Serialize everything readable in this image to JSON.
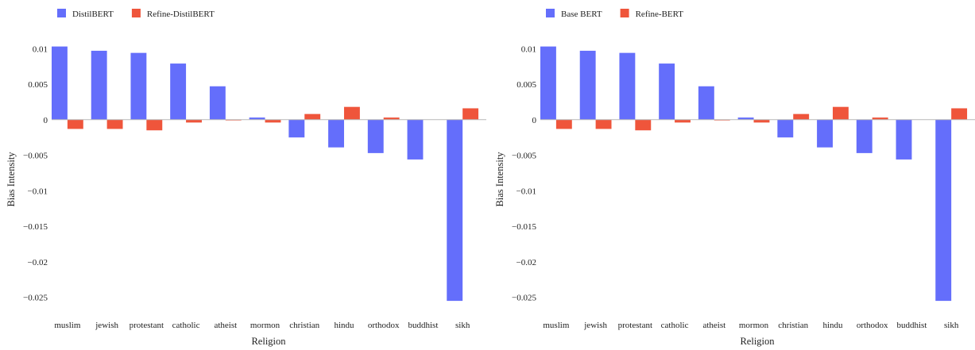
{
  "colors": {
    "series_a": "#646EFB",
    "series_b": "#EF553B"
  },
  "chart_data": [
    {
      "type": "bar",
      "categories": [
        "muslim",
        "jewish",
        "protestant",
        "catholic",
        "atheist",
        "mormon",
        "christian",
        "hindu",
        "orthodox",
        "buddhist",
        "sikh"
      ],
      "series": [
        {
          "name": "DistilBERT",
          "values": [
            0.0103,
            0.0097,
            0.0094,
            0.0079,
            0.0047,
            0.0003,
            -0.0025,
            -0.0039,
            -0.0047,
            -0.0056,
            -0.0255
          ]
        },
        {
          "name": "Refine-DistilBERT",
          "values": [
            -0.0013,
            -0.0013,
            -0.0015,
            -0.0004,
            -0.0001,
            -0.0004,
            0.0008,
            0.0018,
            0.0003,
            0,
            0.0016
          ]
        }
      ],
      "xlabel": "Religion",
      "ylabel": "Bias Intensity",
      "ylim": [
        -0.0275,
        0.0107
      ],
      "yticks": [
        0.01,
        0.005,
        0,
        -0.005,
        -0.01,
        -0.015,
        -0.02,
        -0.025
      ],
      "ytick_labels": [
        "0.01",
        "0.005",
        "0",
        "−0.005",
        "−0.01",
        "−0.015",
        "−0.02",
        "−0.025"
      ],
      "legend_position": "top-left",
      "grid": false
    },
    {
      "type": "bar",
      "categories": [
        "muslim",
        "jewish",
        "protestant",
        "catholic",
        "atheist",
        "mormon",
        "christian",
        "hindu",
        "orthodox",
        "buddhist",
        "sikh"
      ],
      "series": [
        {
          "name": "Base BERT",
          "values": [
            0.0103,
            0.0097,
            0.0094,
            0.0079,
            0.0047,
            0.0003,
            -0.0025,
            -0.0039,
            -0.0047,
            -0.0056,
            -0.0255
          ]
        },
        {
          "name": "Refine-BERT",
          "values": [
            -0.0013,
            -0.0013,
            -0.0015,
            -0.0004,
            -0.0001,
            -0.0004,
            0.0008,
            0.0018,
            0.0003,
            0,
            0.0016
          ]
        }
      ],
      "xlabel": "Religion",
      "ylabel": "Bias Intensity",
      "ylim": [
        -0.0275,
        0.0107
      ],
      "yticks": [
        0.01,
        0.005,
        0,
        -0.005,
        -0.01,
        -0.015,
        -0.02,
        -0.025
      ],
      "ytick_labels": [
        "0.01",
        "0.005",
        "0",
        "−0.005",
        "−0.01",
        "−0.015",
        "−0.02",
        "−0.025"
      ],
      "legend_position": "top-left",
      "grid": false
    }
  ]
}
